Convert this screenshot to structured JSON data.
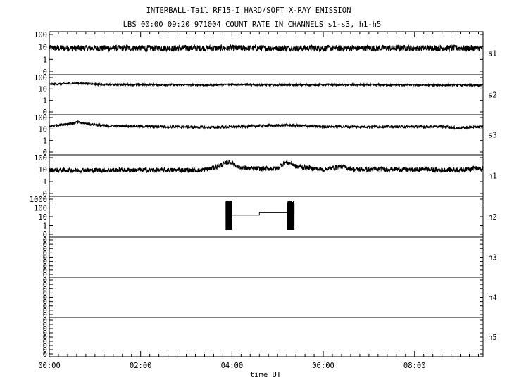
{
  "chart_data": {
    "type": "line",
    "title": "INTERBALL-Tail RF15-I HARD/SOFT X-RAY EMISSION",
    "subtitle": "LBS 00:00 09:20 971004  COUNT RATE IN CHANNELS s1-s3, h1-h5",
    "xlabel": "time UT",
    "x_ticks": [
      "00:00",
      "02:00",
      "04:00",
      "06:00",
      "08:00"
    ],
    "xlim_hours": [
      0,
      9.5
    ],
    "ylog": true,
    "grid": false,
    "panels": [
      {
        "name": "s1",
        "yticks": [
          "100",
          "10",
          "1",
          "0"
        ],
        "ylim": [
          0.3,
          100
        ],
        "profile": [
          [
            0,
            8
          ],
          [
            9.5,
            8
          ]
        ],
        "noise": 0.55
      },
      {
        "name": "s2",
        "yticks": [
          "100",
          "10",
          "1",
          "0"
        ],
        "ylim": [
          0.3,
          100
        ],
        "profile": [
          [
            0,
            25
          ],
          [
            0.6,
            32
          ],
          [
            1.2,
            24
          ],
          [
            3.5,
            22
          ],
          [
            4.0,
            25
          ],
          [
            4.6,
            22
          ],
          [
            6.0,
            23
          ],
          [
            9.5,
            21
          ]
        ],
        "noise": 0.18
      },
      {
        "name": "s3",
        "yticks": [
          "100",
          "10",
          "1",
          "0"
        ],
        "ylim": [
          0.3,
          100
        ],
        "profile": [
          [
            0,
            17
          ],
          [
            0.6,
            38
          ],
          [
            1.2,
            19
          ],
          [
            2.5,
            16
          ],
          [
            3.6,
            14
          ],
          [
            5.2,
            22
          ],
          [
            6.0,
            16
          ],
          [
            8.7,
            16
          ],
          [
            8.9,
            12
          ],
          [
            9.5,
            16
          ]
        ],
        "noise": 0.25
      },
      {
        "name": "h1",
        "yticks": [
          "100",
          "10",
          "1",
          "0"
        ],
        "ylim": [
          0.3,
          100
        ],
        "profile": [
          [
            0,
            9
          ],
          [
            3.3,
            9
          ],
          [
            3.6,
            14
          ],
          [
            3.95,
            45
          ],
          [
            4.1,
            20
          ],
          [
            4.2,
            14
          ],
          [
            4.5,
            12
          ],
          [
            5.0,
            12
          ],
          [
            5.15,
            40
          ],
          [
            5.3,
            35
          ],
          [
            5.4,
            18
          ],
          [
            6.0,
            10
          ],
          [
            6.4,
            18
          ],
          [
            6.7,
            10
          ],
          [
            7.5,
            11
          ],
          [
            7.8,
            10
          ],
          [
            8.0,
            9
          ],
          [
            8.2,
            12
          ],
          [
            8.4,
            9
          ],
          [
            9.1,
            10
          ],
          [
            9.3,
            14
          ],
          [
            9.5,
            10
          ]
        ],
        "noise": 0.45
      },
      {
        "name": "h2",
        "yticks": [
          "1000",
          "100",
          "10",
          "1",
          "0"
        ],
        "ylim": [
          0.3,
          1000
        ],
        "profile": [],
        "noise": 0,
        "bursts": [
          [
            3.87,
            3.99
          ],
          [
            5.22,
            5.36
          ]
        ],
        "steps": [
          [
            3.99,
            4.6,
            15
          ],
          [
            4.6,
            5.22,
            28
          ]
        ]
      },
      {
        "name": "h3",
        "yticks": [
          "0",
          "0",
          "0",
          "0",
          "0",
          "0",
          "0",
          "0",
          "0"
        ],
        "empty": true
      },
      {
        "name": "h4",
        "yticks": [
          "0",
          "0",
          "0",
          "0",
          "0",
          "0",
          "0",
          "0",
          "0"
        ],
        "empty": true
      },
      {
        "name": "h5",
        "yticks": [
          "0",
          "0",
          "0",
          "0",
          "0",
          "0",
          "0",
          "0",
          "0"
        ],
        "empty": true
      }
    ]
  }
}
